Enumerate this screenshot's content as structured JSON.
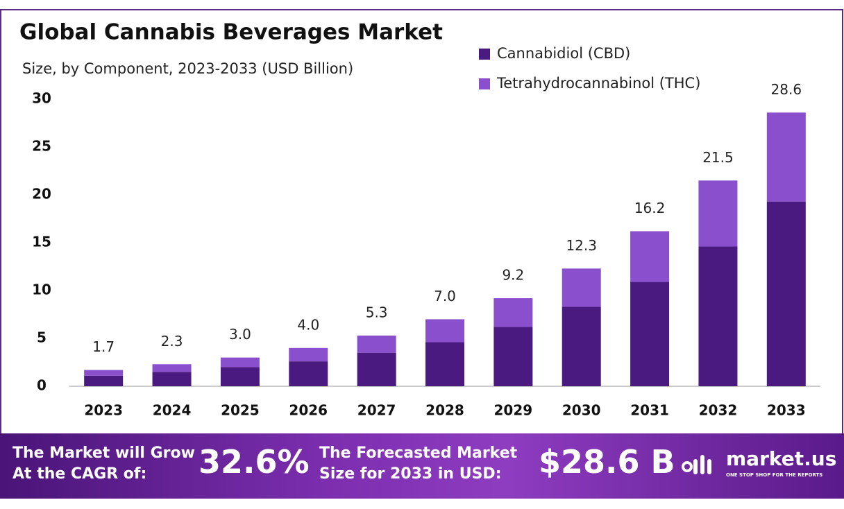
{
  "chart_data": {
    "type": "stacked-bar",
    "title": "Global Cannabis Beverages Market",
    "subtitle": "Size, by Component, 2023-2033 (USD Billion)",
    "categories": [
      "2023",
      "2024",
      "2025",
      "2026",
      "2027",
      "2028",
      "2029",
      "2030",
      "2031",
      "2032",
      "2033"
    ],
    "series": [
      {
        "name": "Cannabidiol (CBD)",
        "color": "#4b1a80",
        "values": [
          1.1,
          1.5,
          2.0,
          2.6,
          3.5,
          4.6,
          6.2,
          8.3,
          10.9,
          14.6,
          19.3
        ]
      },
      {
        "name": "Tetrahydrocannabinol (THC)",
        "color": "#8a4fcc",
        "values": [
          0.6,
          0.8,
          1.0,
          1.4,
          1.8,
          2.4,
          3.0,
          4.0,
          5.3,
          6.9,
          9.3
        ]
      }
    ],
    "totals": [
      1.7,
      2.3,
      3.0,
      4.0,
      5.3,
      7.0,
      9.2,
      12.3,
      16.2,
      21.5,
      28.6
    ],
    "total_labels": [
      "1.7",
      "2.3",
      "3.0",
      "4.0",
      "5.3",
      "7.0",
      "9.2",
      "12.3",
      "16.2",
      "21.5",
      "28.6"
    ],
    "ylim": [
      0,
      30
    ],
    "yticks": [
      0,
      5,
      10,
      15,
      20,
      25,
      30
    ],
    "grid": false,
    "legend": "top-right"
  },
  "banner": {
    "cagr_text": [
      "The Market will Grow",
      "At the CAGR of:"
    ],
    "cagr_value": "32.6%",
    "forecast_text": [
      "The Forecasted Market",
      "Size for 2033 in USD:"
    ],
    "forecast_value": "$28.6 B",
    "brand": "market.us",
    "tagline": "ONE STOP SHOP FOR THE REPORTS"
  }
}
